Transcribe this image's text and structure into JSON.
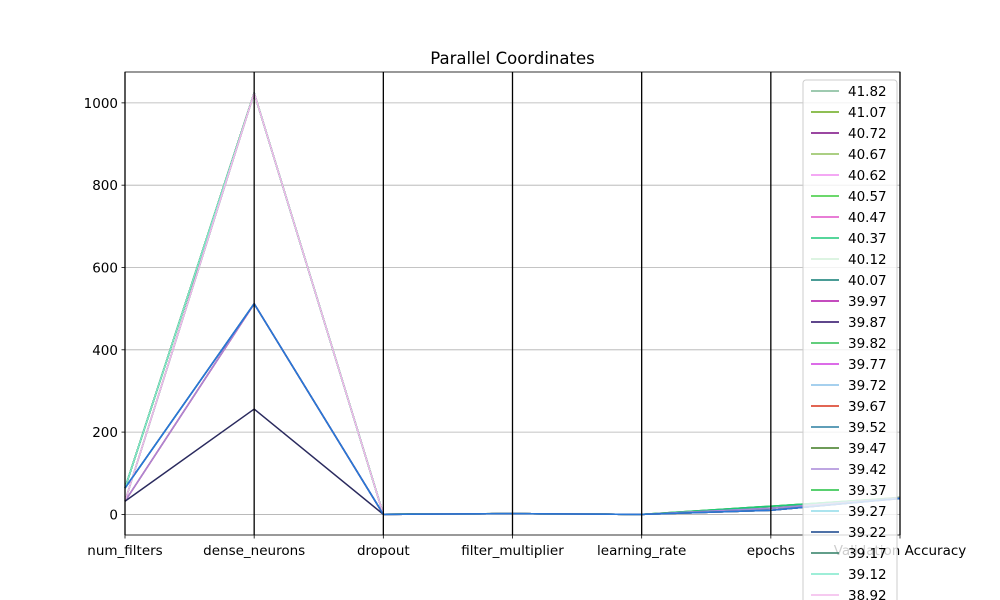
{
  "chart_data": {
    "type": "line",
    "subtype": "parallel-coordinates",
    "title": "Parallel Coordinates",
    "axes": [
      "num_filters",
      "dense_neurons",
      "dropout",
      "filter_multiplier",
      "learning_rate",
      "epochs",
      "Validation Accuracy"
    ],
    "yticks": [
      0,
      200,
      400,
      600,
      800,
      1000
    ],
    "ylim": [
      -50,
      1075
    ],
    "grid": true,
    "legend_position": "right",
    "series": [
      {
        "name": "41.82",
        "color": "#7fb896",
        "values": [
          64,
          1024,
          0.2,
          2,
          0.001,
          15,
          41.82
        ]
      },
      {
        "name": "41.07",
        "color": "#6aaa1c",
        "values": [
          64,
          1024,
          0.3,
          2,
          0.001,
          20,
          41.07
        ]
      },
      {
        "name": "40.72",
        "color": "#7a0a82",
        "values": [
          64,
          1024,
          0.2,
          2,
          0.001,
          15,
          40.72
        ]
      },
      {
        "name": "40.67",
        "color": "#8fbf5a",
        "values": [
          64,
          1024,
          0.3,
          2,
          0.001,
          15,
          40.67
        ]
      },
      {
        "name": "40.62",
        "color": "#f08cf0",
        "values": [
          32,
          1024,
          0.2,
          2,
          0.001,
          15,
          40.62
        ]
      },
      {
        "name": "40.57",
        "color": "#3ccc3c",
        "values": [
          64,
          1024,
          0.3,
          2,
          0.001,
          20,
          40.57
        ]
      },
      {
        "name": "40.47",
        "color": "#e052c8",
        "values": [
          32,
          512,
          0.2,
          2,
          0.001,
          15,
          40.47
        ]
      },
      {
        "name": "40.37",
        "color": "#1fc87a",
        "values": [
          64,
          1024,
          0.2,
          2,
          0.001,
          20,
          40.37
        ]
      },
      {
        "name": "40.12",
        "color": "#d2f0d8",
        "values": [
          32,
          1024,
          0.3,
          2,
          0.001,
          15,
          40.12
        ]
      },
      {
        "name": "40.07",
        "color": "#0f7c74",
        "values": [
          64,
          512,
          0.2,
          2,
          0.001,
          15,
          40.07
        ]
      },
      {
        "name": "39.97",
        "color": "#b010a8",
        "values": [
          64,
          1024,
          0.2,
          2,
          0.001,
          10,
          39.97
        ]
      },
      {
        "name": "39.87",
        "color": "#2a0a66",
        "values": [
          64,
          1024,
          0.3,
          2,
          0.001,
          10,
          39.87
        ]
      },
      {
        "name": "39.82",
        "color": "#2fbd50",
        "values": [
          32,
          1024,
          0.2,
          2,
          0.001,
          15,
          39.82
        ]
      },
      {
        "name": "39.77",
        "color": "#d03ce0",
        "values": [
          32,
          512,
          0.3,
          2,
          0.001,
          10,
          39.77
        ]
      },
      {
        "name": "39.72",
        "color": "#88c0e8",
        "values": [
          64,
          512,
          0.2,
          2,
          0.001,
          15,
          39.72
        ]
      },
      {
        "name": "39.67",
        "color": "#d8321a",
        "values": [
          32,
          512,
          0.2,
          2,
          0.001,
          10,
          39.67
        ]
      },
      {
        "name": "39.52",
        "color": "#2a7ea0",
        "values": [
          64,
          512,
          0.3,
          2,
          0.001,
          15,
          39.52
        ]
      },
      {
        "name": "39.47",
        "color": "#3f7a20",
        "values": [
          64,
          1024,
          0.2,
          2,
          0.001,
          10,
          39.47
        ]
      },
      {
        "name": "39.42",
        "color": "#a888d8",
        "values": [
          32,
          512,
          0.2,
          2,
          0.001,
          15,
          39.42
        ]
      },
      {
        "name": "39.37",
        "color": "#22c040",
        "values": [
          64,
          1024,
          0.3,
          2,
          0.001,
          10,
          39.37
        ]
      },
      {
        "name": "39.27",
        "color": "#90dce8",
        "values": [
          32,
          1024,
          0.2,
          2,
          0.001,
          10,
          39.27
        ]
      },
      {
        "name": "39.22",
        "color": "#14428a",
        "values": [
          64,
          512,
          0.2,
          2,
          0.001,
          10,
          39.22
        ]
      },
      {
        "name": "39.17",
        "color": "#2e7e64",
        "values": [
          32,
          1024,
          0.3,
          2,
          0.001,
          10,
          39.17
        ]
      },
      {
        "name": "39.12",
        "color": "#7fe8cc",
        "values": [
          64,
          1024,
          0.2,
          2,
          0.001,
          10,
          39.12
        ]
      },
      {
        "name": "38.92",
        "color": "#f4b8ec",
        "values": [
          32,
          1024,
          0.2,
          2,
          0.001,
          10,
          38.92
        ]
      },
      {
        "name": "",
        "color": "#2a2a5e",
        "values": [
          32,
          256,
          0.2,
          2,
          0.001,
          10,
          38.5
        ]
      },
      {
        "name": "",
        "color": "#2a78d8",
        "values": [
          64,
          512,
          0.2,
          2,
          0.001,
          10,
          38.8
        ]
      }
    ]
  }
}
